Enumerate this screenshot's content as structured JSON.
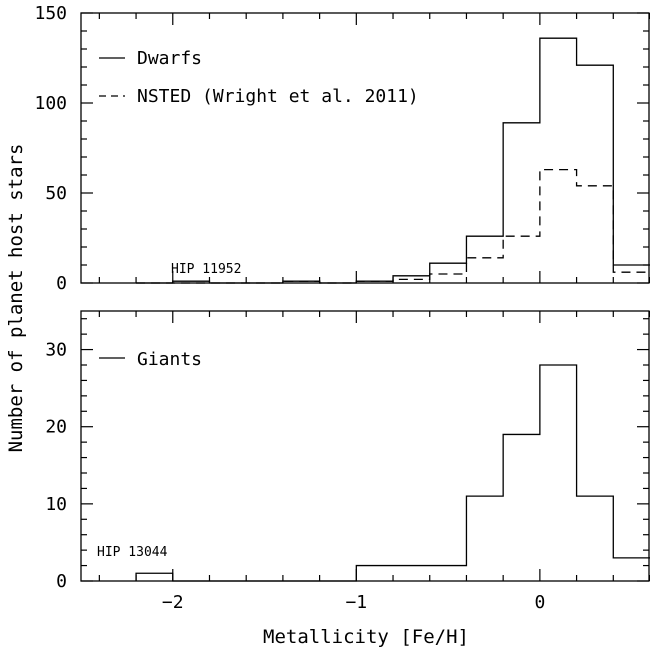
{
  "chart_data": {
    "type": "histogram",
    "xlabel": "Metallicity [Fe/H]",
    "ylabel": "Number of planet host stars",
    "xlim": [
      -2.5,
      0.6
    ],
    "xticks": [
      -2,
      -1,
      0
    ],
    "xtick_labels": [
      "−2",
      "−1",
      "0"
    ],
    "bin_edges": [
      -2.2,
      -2.0,
      -1.8,
      -1.6,
      -1.4,
      -1.2,
      -1.0,
      -0.8,
      -0.6,
      -0.4,
      -0.2,
      0.0,
      0.2,
      0.4,
      0.6
    ],
    "panels": [
      {
        "id": "top",
        "ylim": [
          0,
          150
        ],
        "yticks": [
          0,
          50,
          100,
          150
        ],
        "ytick_labels": [
          "0",
          "50",
          "100",
          "150"
        ],
        "series": [
          {
            "name": "Dwarfs",
            "style": "solid",
            "values": [
              0,
              1,
              0,
              0,
              1,
              0,
              1,
              4,
              11,
              26,
              89,
              136,
              121,
              10
            ]
          },
          {
            "name": "NSTED (Wright et al. 2011)",
            "style": "dashed",
            "values": [
              0,
              0,
              0,
              0,
              1,
              0,
              1,
              2,
              5,
              14,
              26,
              63,
              54,
              6
            ]
          }
        ],
        "annotation": "HIP 11952"
      },
      {
        "id": "bottom",
        "ylim": [
          0,
          35
        ],
        "yticks": [
          0,
          10,
          20,
          30
        ],
        "ytick_labels": [
          "0",
          "10",
          "20",
          "30"
        ],
        "series": [
          {
            "name": "Giants",
            "style": "solid",
            "values": [
              1,
              0,
              0,
              0,
              0,
              0,
              2,
              2,
              2,
              11,
              19,
              28,
              11,
              3
            ]
          }
        ],
        "annotation": "HIP 13044"
      }
    ]
  }
}
